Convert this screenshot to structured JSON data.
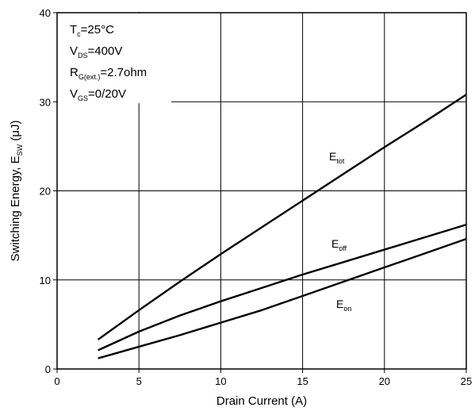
{
  "chart_data": {
    "type": "line",
    "title": "",
    "xlabel": "Drain Current (A)",
    "ylabel": {
      "main": "Switching Energy, E",
      "sub": "SW",
      "unit": " (μJ)"
    },
    "xlim": [
      0,
      25
    ],
    "ylim": [
      0,
      40
    ],
    "xticks": [
      "0",
      "5",
      "10",
      "15",
      "20",
      "25"
    ],
    "yticks": [
      "0",
      "10",
      "20",
      "30",
      "40"
    ],
    "grid": true,
    "conditions": [
      {
        "main": "T",
        "sub": "c",
        "rest": "=25°C"
      },
      {
        "main": "V",
        "sub": "DS",
        "rest": "=400V"
      },
      {
        "main": "R",
        "sub": "G(ext.)",
        "rest": "=2.7ohm"
      },
      {
        "main": "V",
        "sub": "GS",
        "rest": "=0/20V"
      }
    ],
    "series": [
      {
        "name": "E_tot",
        "label_main": "E",
        "label_sub": "tot",
        "x": [
          2.5,
          5,
          7.5,
          10,
          12.5,
          15,
          17.5,
          20,
          22.5,
          25
        ],
        "y": [
          3.3,
          6.6,
          9.8,
          12.9,
          15.9,
          18.9,
          21.9,
          24.9,
          27.8,
          30.8
        ]
      },
      {
        "name": "E_off",
        "label_main": "E",
        "label_sub": "off",
        "x": [
          2.5,
          5,
          7.5,
          10,
          12.5,
          15,
          17.5,
          20,
          22.5,
          25
        ],
        "y": [
          2.1,
          4.2,
          6.0,
          7.6,
          9.1,
          10.6,
          12.0,
          13.4,
          14.8,
          16.2
        ]
      },
      {
        "name": "E_on",
        "label_main": "E",
        "label_sub": "on",
        "x": [
          2.5,
          5,
          7.5,
          10,
          12.5,
          15,
          17.5,
          20,
          22.5,
          25
        ],
        "y": [
          1.2,
          2.5,
          3.8,
          5.2,
          6.6,
          8.2,
          9.8,
          11.4,
          13.0,
          14.6
        ]
      }
    ]
  }
}
